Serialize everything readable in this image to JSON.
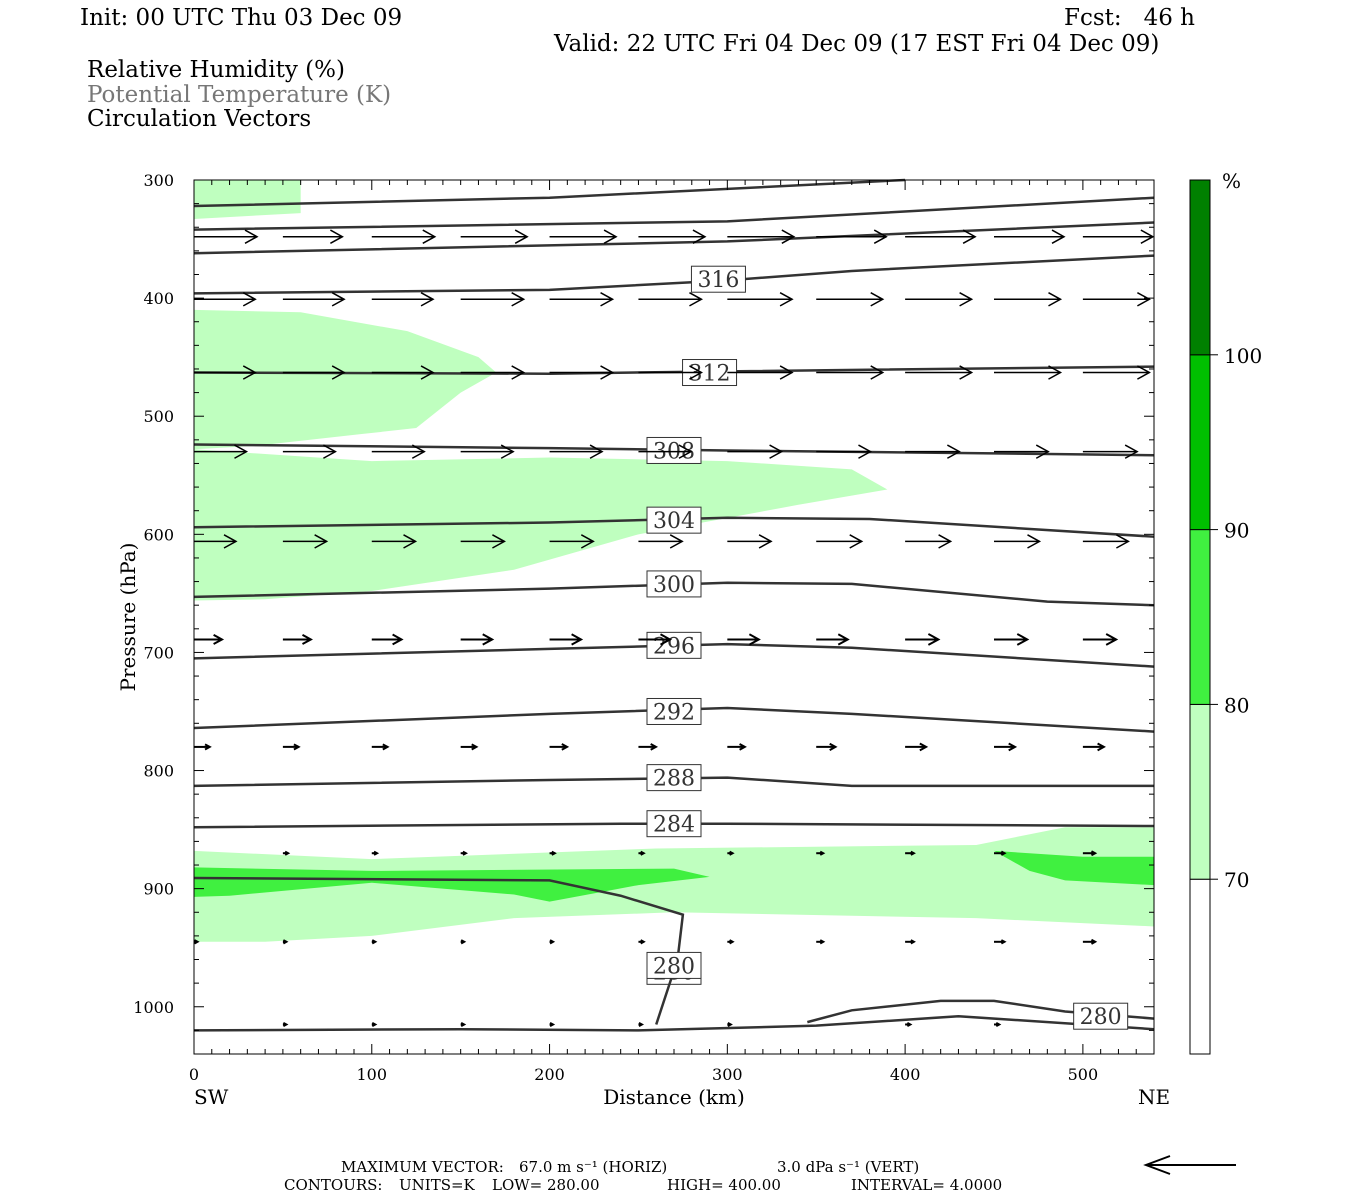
{
  "header": {
    "init": "Init: 00 UTC Thu 03 Dec 09",
    "fcst": "Fcst:   46 h",
    "valid": "Valid: 22 UTC Fri 04 Dec 09 (17 EST Fri 04 Dec 09)"
  },
  "legend": {
    "line1": "Relative Humidity (%)",
    "line2": "Potential Temperature (K)",
    "line3": "Circulation Vectors"
  },
  "colorbar": {
    "unit": "%",
    "levels": [
      "70",
      "80",
      "90",
      "100"
    ],
    "colors": [
      "#ffffff",
      "#bfffbf",
      "#40f040",
      "#00c000",
      "#008000"
    ]
  },
  "footer": {
    "max_vector_label": "MAXIMUM VECTOR:",
    "max_vector_horiz": "67.0 m s⁻¹ (HORIZ)",
    "max_vector_vert": "3.0 dPa s⁻¹ (VERT)",
    "contours_label": "CONTOURS:",
    "units": "UNITS=K",
    "low": "LOW=   280.00",
    "high": "HIGH=   400.00",
    "interval": "INTERVAL=     4.0000"
  },
  "chart_data": {
    "type": "cross-section",
    "xlabel": "Distance (km)",
    "ylabel": "Pressure (hPa)",
    "xlim": [
      0,
      540
    ],
    "ylim": [
      1040,
      300
    ],
    "x_ticks": [
      "0",
      "100",
      "200",
      "300",
      "400",
      "500"
    ],
    "y_ticks": [
      "300",
      "400",
      "500",
      "600",
      "700",
      "800",
      "900",
      "1000"
    ],
    "x_end_labels": {
      "left": "SW",
      "right": "NE"
    },
    "theta_contours": [
      {
        "label": "280",
        "points": [
          [
            0,
            1020
          ],
          [
            150,
            1019
          ],
          [
            250,
            1020
          ],
          [
            350,
            1016
          ],
          [
            430,
            1008
          ],
          [
            540,
            1019
          ]
        ],
        "label_at": [
          270,
          970
        ]
      },
      {
        "label": "280",
        "points": [
          [
            345,
            1013
          ],
          [
            370,
            1003
          ],
          [
            420,
            995
          ],
          [
            450,
            995
          ],
          [
            490,
            1004
          ],
          [
            540,
            1010
          ]
        ],
        "label_at": [
          510,
          1008
        ]
      },
      {
        "label": "280",
        "points": [
          [
            0,
            891
          ],
          [
            200,
            893
          ],
          [
            240,
            906
          ],
          [
            275,
            922
          ],
          [
            272,
            960
          ],
          [
            260,
            1015
          ]
        ],
        "label_at": [
          270,
          965
        ]
      },
      {
        "label": "284",
        "points": [
          [
            0,
            848
          ],
          [
            240,
            845
          ],
          [
            300,
            845
          ],
          [
            540,
            847
          ]
        ],
        "label_at": [
          270,
          845
        ]
      },
      {
        "label": "288",
        "points": [
          [
            0,
            813
          ],
          [
            200,
            808
          ],
          [
            300,
            806
          ],
          [
            370,
            813
          ],
          [
            540,
            813
          ]
        ],
        "label_at": [
          270,
          806
        ]
      },
      {
        "label": "292",
        "points": [
          [
            0,
            764
          ],
          [
            200,
            752
          ],
          [
            300,
            747
          ],
          [
            370,
            752
          ],
          [
            540,
            767
          ]
        ],
        "label_at": [
          270,
          750
        ]
      },
      {
        "label": "296",
        "points": [
          [
            0,
            705
          ],
          [
            200,
            697
          ],
          [
            300,
            693
          ],
          [
            370,
            696
          ],
          [
            540,
            712
          ]
        ],
        "label_at": [
          270,
          694
        ]
      },
      {
        "label": "300",
        "points": [
          [
            0,
            653
          ],
          [
            200,
            646
          ],
          [
            300,
            641
          ],
          [
            370,
            642
          ],
          [
            480,
            657
          ],
          [
            540,
            660
          ]
        ],
        "label_at": [
          270,
          642
        ]
      },
      {
        "label": "304",
        "points": [
          [
            0,
            594
          ],
          [
            200,
            590
          ],
          [
            300,
            586
          ],
          [
            380,
            587
          ],
          [
            540,
            602
          ]
        ],
        "label_at": [
          270,
          588
        ]
      },
      {
        "label": "308",
        "points": [
          [
            0,
            524
          ],
          [
            200,
            527
          ],
          [
            300,
            529
          ],
          [
            540,
            533
          ]
        ],
        "label_at": [
          270,
          529
        ]
      },
      {
        "label": "312",
        "points": [
          [
            0,
            463
          ],
          [
            200,
            464
          ],
          [
            300,
            462
          ],
          [
            540,
            458
          ]
        ],
        "label_at": [
          290,
          463
        ]
      },
      {
        "label": "316",
        "points": [
          [
            0,
            396
          ],
          [
            200,
            393
          ],
          [
            300,
            385
          ],
          [
            370,
            377
          ],
          [
            540,
            364
          ]
        ],
        "label_at": [
          295,
          384
        ]
      },
      {
        "label": "",
        "points": [
          [
            0,
            362
          ],
          [
            300,
            352
          ],
          [
            540,
            336
          ]
        ],
        "label_at": null
      },
      {
        "label": "",
        "points": [
          [
            0,
            342
          ],
          [
            300,
            335
          ],
          [
            540,
            315
          ]
        ],
        "label_at": null
      },
      {
        "label": "",
        "points": [
          [
            0,
            322
          ],
          [
            200,
            315
          ],
          [
            400,
            300
          ]
        ],
        "label_at": null
      }
    ],
    "rh_shading": [
      {
        "level": "70-80",
        "points": [
          [
            0,
            300
          ],
          [
            60,
            300
          ],
          [
            60,
            328
          ],
          [
            0,
            333
          ]
        ]
      },
      {
        "level": "70-80",
        "points": [
          [
            0,
            410
          ],
          [
            60,
            412
          ],
          [
            120,
            428
          ],
          [
            160,
            450
          ],
          [
            170,
            463
          ],
          [
            150,
            480
          ],
          [
            125,
            510
          ],
          [
            95,
            515
          ],
          [
            35,
            525
          ],
          [
            0,
            528
          ]
        ]
      },
      {
        "level": "70-80",
        "points": [
          [
            0,
            528
          ],
          [
            40,
            532
          ],
          [
            100,
            538
          ],
          [
            200,
            535
          ],
          [
            300,
            538
          ],
          [
            370,
            545
          ],
          [
            390,
            562
          ],
          [
            340,
            575
          ],
          [
            250,
            600
          ],
          [
            180,
            630
          ],
          [
            100,
            648
          ],
          [
            40,
            655
          ],
          [
            0,
            656
          ]
        ]
      },
      {
        "level": "70-80",
        "points": [
          [
            0,
            868
          ],
          [
            100,
            875
          ],
          [
            260,
            866
          ],
          [
            440,
            863
          ],
          [
            490,
            848
          ],
          [
            540,
            848
          ],
          [
            540,
            932
          ],
          [
            440,
            925
          ],
          [
            270,
            920
          ],
          [
            180,
            925
          ],
          [
            100,
            940
          ],
          [
            40,
            945
          ],
          [
            0,
            945
          ]
        ]
      },
      {
        "level": "80-90",
        "points": [
          [
            0,
            882
          ],
          [
            100,
            885
          ],
          [
            270,
            883
          ],
          [
            290,
            890
          ],
          [
            250,
            897
          ],
          [
            200,
            911
          ],
          [
            180,
            905
          ],
          [
            100,
            895
          ],
          [
            20,
            906
          ],
          [
            0,
            907
          ]
        ]
      },
      {
        "level": "80-90",
        "points": [
          [
            450,
            868
          ],
          [
            500,
            873
          ],
          [
            540,
            873
          ],
          [
            540,
            897
          ],
          [
            490,
            893
          ],
          [
            470,
            885
          ]
        ]
      }
    ],
    "vector_rows": [
      {
        "p": 348,
        "x": [
          0,
          50,
          100,
          150,
          200,
          250,
          300,
          350,
          400,
          450,
          500
        ],
        "u": [
          36,
          34,
          36,
          38,
          38,
          38,
          38,
          40,
          40,
          40,
          40
        ],
        "w": [
          0,
          0,
          0,
          0,
          0,
          0,
          0,
          0,
          0,
          0,
          0
        ]
      },
      {
        "p": 401,
        "x": [
          0,
          50,
          100,
          150,
          200,
          250,
          300,
          350,
          400,
          450,
          500
        ],
        "u": [
          35,
          35,
          35,
          36,
          36,
          36,
          37,
          38,
          38,
          38,
          38
        ],
        "w": [
          0,
          0,
          0,
          0,
          0,
          0,
          0,
          0,
          0,
          0,
          0
        ]
      },
      {
        "p": 463,
        "x": [
          0,
          50,
          100,
          150,
          200,
          250,
          300,
          350,
          400,
          450,
          500
        ],
        "u": [
          35,
          35,
          35,
          36,
          36,
          36,
          37,
          38,
          38,
          38,
          38
        ],
        "w": [
          0,
          0,
          0,
          0,
          0,
          0,
          0,
          0,
          0,
          0,
          0
        ]
      },
      {
        "p": 530,
        "x": [
          0,
          50,
          100,
          150,
          200,
          250,
          300,
          350,
          400,
          450,
          500
        ],
        "u": [
          30,
          30,
          30,
          30,
          30,
          30,
          31,
          31,
          31,
          31,
          31
        ],
        "w": [
          0,
          0,
          0,
          0,
          0,
          0,
          0,
          0,
          0,
          0,
          0
        ]
      },
      {
        "p": 606,
        "x": [
          0,
          50,
          100,
          150,
          200,
          250,
          300,
          350,
          400,
          450,
          500
        ],
        "u": [
          24,
          25,
          25,
          25,
          25,
          25,
          25,
          26,
          26,
          26,
          26
        ],
        "w": [
          0,
          0,
          0,
          0,
          0,
          0,
          0,
          0,
          0,
          0,
          0
        ]
      },
      {
        "p": 689,
        "x": [
          0,
          50,
          100,
          150,
          200,
          250,
          300,
          350,
          400,
          450,
          500
        ],
        "u": [
          16,
          16,
          17,
          18,
          18,
          18,
          18,
          18,
          19,
          19,
          19
        ],
        "w": [
          0,
          0,
          0,
          0,
          0,
          0,
          0,
          0,
          0,
          0,
          0
        ]
      },
      {
        "p": 780,
        "x": [
          0,
          50,
          100,
          150,
          200,
          250,
          300,
          350,
          400,
          450,
          500
        ],
        "u": [
          9,
          9,
          9,
          9,
          10,
          10,
          10,
          11,
          12,
          12,
          12
        ],
        "w": [
          0,
          0,
          0,
          0,
          0,
          0,
          0,
          0,
          0,
          0,
          0
        ]
      },
      {
        "p": 870,
        "x": [
          50,
          100,
          150,
          200,
          250,
          300,
          350,
          400,
          450,
          500
        ],
        "u": [
          3,
          3,
          3,
          3,
          3,
          3,
          4,
          5,
          6,
          7
        ],
        "w": [
          0,
          0,
          0,
          0,
          0,
          0,
          0,
          0,
          0,
          0
        ]
      },
      {
        "p": 945,
        "x": [
          0,
          50,
          100,
          150,
          200,
          250,
          300,
          350,
          400,
          450,
          500
        ],
        "u": [
          2,
          2,
          2,
          2,
          2,
          3,
          3,
          4,
          5,
          6,
          7
        ],
        "w": [
          0,
          0,
          0,
          0,
          0,
          0,
          0,
          0,
          0,
          0,
          0
        ]
      },
      {
        "p": 1015,
        "x": [
          50,
          100,
          150,
          200,
          250,
          300,
          400,
          450
        ],
        "u": [
          2,
          2,
          2,
          2,
          2,
          2,
          3,
          3
        ],
        "w": [
          0,
          0,
          0,
          0,
          0,
          0,
          0,
          0
        ]
      }
    ]
  }
}
